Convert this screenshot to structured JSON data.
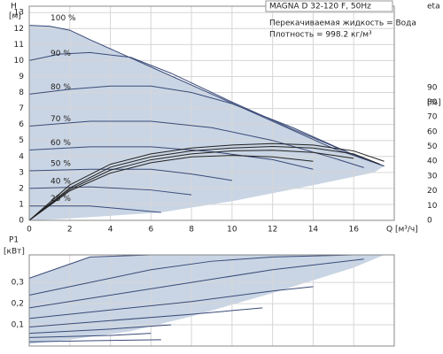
{
  "chart_data": [
    {
      "type": "line",
      "title": "MAGNA D 32-120 F, 50Hz",
      "annotations": [
        "Перекачиваемая жидкость = Вода",
        "Плотность = 998.2 кг/м³"
      ],
      "ylabel": "H",
      "yunit": "[м]",
      "y2label": "eta",
      "y2unit": "[%]",
      "xlabel": "Q [м³/ч]",
      "xlim": [
        0,
        18
      ],
      "xticks": [
        0,
        2,
        4,
        6,
        8,
        10,
        12,
        14,
        16
      ],
      "ylim": [
        0,
        13.4
      ],
      "yticks": [
        0,
        1,
        2,
        3,
        4,
        5,
        6,
        7,
        8,
        9,
        10,
        11,
        12,
        13
      ],
      "y2lim": [
        0,
        145
      ],
      "y2ticks": [
        0,
        10,
        20,
        30,
        40,
        50,
        60,
        70,
        80,
        90
      ],
      "grid": true,
      "area": {
        "color": "#c9d5e4",
        "x": [
          0,
          1,
          2,
          3,
          6,
          9,
          12,
          15,
          17.5,
          17,
          14,
          10,
          6.5,
          3,
          1,
          0
        ],
        "y": [
          12.2,
          12.15,
          11.9,
          11.3,
          9.6,
          7.9,
          6.2,
          4.5,
          3.4,
          3.0,
          2.2,
          1.2,
          0.5,
          0.2,
          0.05,
          0
        ]
      },
      "series": [
        {
          "name": "100 %",
          "color": "#3a4a78",
          "x": [
            0,
            1,
            2,
            3,
            6,
            9,
            12,
            15,
            17.5
          ],
          "values": [
            12.2,
            12.15,
            11.9,
            11.3,
            9.6,
            7.9,
            6.2,
            4.5,
            3.4
          ]
        },
        {
          "name": "90 %",
          "color": "#3a4a78",
          "x": [
            0,
            1.5,
            3,
            5,
            7,
            10,
            13,
            16,
            17.5
          ],
          "values": [
            10,
            10.4,
            10.5,
            10.2,
            9.2,
            7.4,
            5.7,
            4.1,
            3.4
          ]
        },
        {
          "name": "80 %",
          "color": "#3a4a78",
          "x": [
            0,
            2,
            4,
            6,
            8,
            10,
            13,
            16
          ],
          "values": [
            7.9,
            8.2,
            8.4,
            8.4,
            8,
            7.3,
            5.8,
            4.1
          ]
        },
        {
          "name": "70 %",
          "color": "#3a4a78",
          "x": [
            0,
            3,
            6,
            9,
            12,
            15,
            16.5
          ],
          "values": [
            5.9,
            6.2,
            6.2,
            5.8,
            5,
            3.9,
            3.3
          ]
        },
        {
          "name": "60 %",
          "color": "#3a4a78",
          "x": [
            0,
            3,
            6,
            9,
            12,
            14
          ],
          "values": [
            4.4,
            4.6,
            4.6,
            4.3,
            3.8,
            3.2
          ]
        },
        {
          "name": "50 %",
          "color": "#3a4a78",
          "x": [
            0,
            3,
            6,
            8,
            10
          ],
          "values": [
            3.1,
            3.2,
            3.2,
            2.9,
            2.5
          ]
        },
        {
          "name": "40 %",
          "color": "#3a4a78",
          "x": [
            0,
            3,
            6,
            8
          ],
          "values": [
            2,
            2.1,
            1.9,
            1.6
          ]
        },
        {
          "name": "25 %",
          "color": "#3a4a78",
          "x": [
            0,
            3,
            6.5
          ],
          "values": [
            0.9,
            0.9,
            0.5
          ]
        },
        {
          "axis": "y2",
          "color": "#222222",
          "x": [
            0,
            2,
            4,
            6,
            8,
            10,
            12,
            14,
            16,
            17.5
          ],
          "values": [
            0,
            24,
            38,
            45,
            49,
            51,
            52,
            51,
            47,
            40
          ]
        },
        {
          "axis": "y2",
          "color": "#222222",
          "x": [
            0,
            2,
            4,
            6,
            8,
            10,
            12,
            14,
            16,
            17.3
          ],
          "values": [
            0,
            22,
            36,
            43,
            47,
            49,
            50,
            49,
            45,
            38
          ]
        },
        {
          "axis": "y2",
          "color": "#222222",
          "x": [
            0,
            2,
            4,
            6,
            8,
            10,
            12,
            14,
            16
          ],
          "values": [
            0,
            21,
            34,
            41,
            45,
            47,
            47.5,
            46,
            42
          ]
        },
        {
          "axis": "y2",
          "color": "#222222",
          "x": [
            0,
            2,
            4,
            6,
            8,
            10,
            12,
            14
          ],
          "values": [
            0,
            20,
            32,
            39,
            43,
            44,
            43,
            40
          ]
        }
      ]
    },
    {
      "type": "line",
      "ylabel": "P1",
      "yunit": "[кВт]",
      "xlim": [
        0,
        18
      ],
      "xticks": [
        0,
        2,
        4,
        6,
        8,
        10,
        12,
        14,
        16
      ],
      "ylim": [
        0,
        0.43
      ],
      "yticks": [
        {
          "value": 0.1,
          "label": "0,1"
        },
        {
          "value": 0.2,
          "label": "0,2"
        },
        {
          "value": 0.3,
          "label": "0,3"
        }
      ],
      "grid": true,
      "area": {
        "color": "#c9d5e4",
        "x": [
          0,
          1.5,
          3,
          6,
          17.5,
          16,
          12,
          8,
          5,
          2,
          0
        ],
        "y": [
          0.32,
          0.37,
          0.42,
          0.43,
          0.43,
          0.37,
          0.25,
          0.14,
          0.07,
          0.03,
          0.01
        ]
      },
      "series": [
        {
          "color": "#3a4a78",
          "x": [
            0,
            1.5,
            3,
            6,
            17.5
          ],
          "values": [
            0.32,
            0.37,
            0.42,
            0.43,
            0.43
          ]
        },
        {
          "color": "#3a4a78",
          "x": [
            0,
            3,
            6,
            9,
            12,
            16
          ],
          "values": [
            0.24,
            0.3,
            0.36,
            0.4,
            0.42,
            0.43
          ]
        },
        {
          "color": "#3a4a78",
          "x": [
            0,
            4,
            8,
            12,
            16.5
          ],
          "values": [
            0.18,
            0.24,
            0.3,
            0.36,
            0.41
          ]
        },
        {
          "color": "#3a4a78",
          "x": [
            0,
            4,
            8,
            12,
            14
          ],
          "values": [
            0.13,
            0.17,
            0.21,
            0.26,
            0.28
          ]
        },
        {
          "color": "#3a4a78",
          "x": [
            0,
            4,
            8,
            11.5
          ],
          "values": [
            0.09,
            0.12,
            0.15,
            0.18
          ]
        },
        {
          "color": "#3a4a78",
          "x": [
            0,
            4,
            7
          ],
          "values": [
            0.06,
            0.08,
            0.1
          ]
        },
        {
          "color": "#3a4a78",
          "x": [
            0,
            4,
            6
          ],
          "values": [
            0.04,
            0.05,
            0.06
          ]
        },
        {
          "color": "#3a4a78",
          "x": [
            0,
            3,
            6.5
          ],
          "values": [
            0.02,
            0.025,
            0.03
          ]
        }
      ]
    }
  ]
}
